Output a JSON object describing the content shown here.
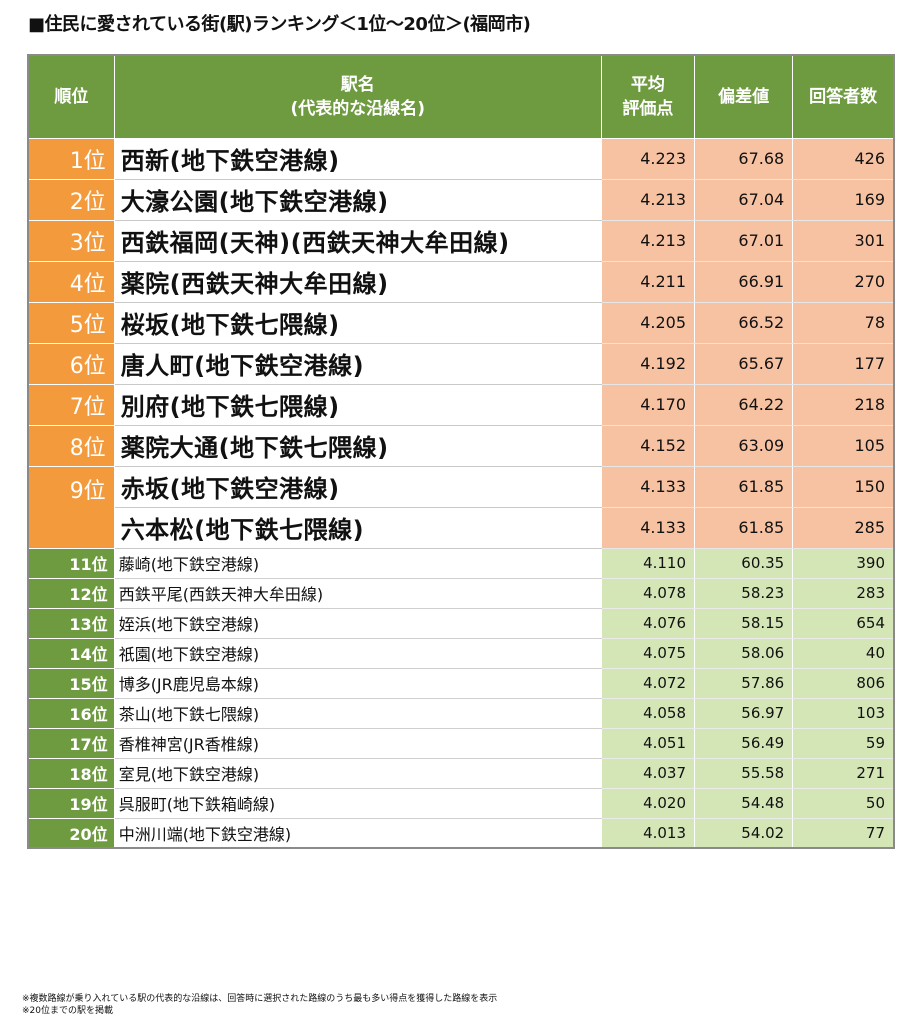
{
  "title": "■住民に愛されている街(駅)ランキング＜1位～20位＞(福岡市)",
  "table": {
    "headers": {
      "rank": "順位",
      "station_line1": "駅名",
      "station_line2": "(代表的な沿線名)",
      "avg_line1": "平均",
      "avg_line2": "評価点",
      "deviation": "偏差値",
      "respondents": "回答者数"
    },
    "rows": [
      {
        "rank": "1位",
        "station": "西新(地下鉄空港線)",
        "score": "4.223",
        "deviation": "67.68",
        "respondents": "426"
      },
      {
        "rank": "2位",
        "station": "大濠公園(地下鉄空港線)",
        "score": "4.213",
        "deviation": "67.04",
        "respondents": "169"
      },
      {
        "rank": "3位",
        "station": "西鉄福岡(天神)(西鉄天神大牟田線)",
        "score": "4.213",
        "deviation": "67.01",
        "respondents": "301"
      },
      {
        "rank": "4位",
        "station": "薬院(西鉄天神大牟田線)",
        "score": "4.211",
        "deviation": "66.91",
        "respondents": "270"
      },
      {
        "rank": "5位",
        "station": "桜坂(地下鉄七隈線)",
        "score": "4.205",
        "deviation": "66.52",
        "respondents": "78"
      },
      {
        "rank": "6位",
        "station": "唐人町(地下鉄空港線)",
        "score": "4.192",
        "deviation": "65.67",
        "respondents": "177"
      },
      {
        "rank": "7位",
        "station": "別府(地下鉄七隈線)",
        "score": "4.170",
        "deviation": "64.22",
        "respondents": "218"
      },
      {
        "rank": "8位",
        "station": "薬院大通(地下鉄七隈線)",
        "score": "4.152",
        "deviation": "63.09",
        "respondents": "105"
      },
      {
        "rank": "9位",
        "station": "赤坂(地下鉄空港線)",
        "score": "4.133",
        "deviation": "61.85",
        "respondents": "150"
      },
      {
        "rank": "",
        "station": "六本松(地下鉄七隈線)",
        "score": "4.133",
        "deviation": "61.85",
        "respondents": "285"
      },
      {
        "rank": "11位",
        "station": "藤崎(地下鉄空港線)",
        "score": "4.110",
        "deviation": "60.35",
        "respondents": "390"
      },
      {
        "rank": "12位",
        "station": "西鉄平尾(西鉄天神大牟田線)",
        "score": "4.078",
        "deviation": "58.23",
        "respondents": "283"
      },
      {
        "rank": "13位",
        "station": "姪浜(地下鉄空港線)",
        "score": "4.076",
        "deviation": "58.15",
        "respondents": "654"
      },
      {
        "rank": "14位",
        "station": "祇園(地下鉄空港線)",
        "score": "4.075",
        "deviation": "58.06",
        "respondents": "40"
      },
      {
        "rank": "15位",
        "station": "博多(JR鹿児島本線)",
        "score": "4.072",
        "deviation": "57.86",
        "respondents": "806"
      },
      {
        "rank": "16位",
        "station": "茶山(地下鉄七隈線)",
        "score": "4.058",
        "deviation": "56.97",
        "respondents": "103"
      },
      {
        "rank": "17位",
        "station": "香椎神宮(JR香椎線)",
        "score": "4.051",
        "deviation": "56.49",
        "respondents": "59"
      },
      {
        "rank": "18位",
        "station": "室見(地下鉄空港線)",
        "score": "4.037",
        "deviation": "55.58",
        "respondents": "271"
      },
      {
        "rank": "19位",
        "station": "呉服町(地下鉄箱崎線)",
        "score": "4.020",
        "deviation": "54.48",
        "respondents": "50"
      },
      {
        "rank": "20位",
        "station": "中洲川端(地下鉄空港線)",
        "score": "4.013",
        "deviation": "54.02",
        "respondents": "77"
      }
    ]
  },
  "notes": [
    "※複数路線が乗り入れている駅の代表的な沿線は、回答時に選択された路線のうち最も多い得点を獲得した路線を表示",
    "※20位までの駅を掲載"
  ],
  "colors": {
    "header_green": "#6e9a40",
    "top_rank_orange": "#f39a3c",
    "top_value_peach": "#f7c2a2",
    "low_value_green": "#d4e6b6"
  }
}
